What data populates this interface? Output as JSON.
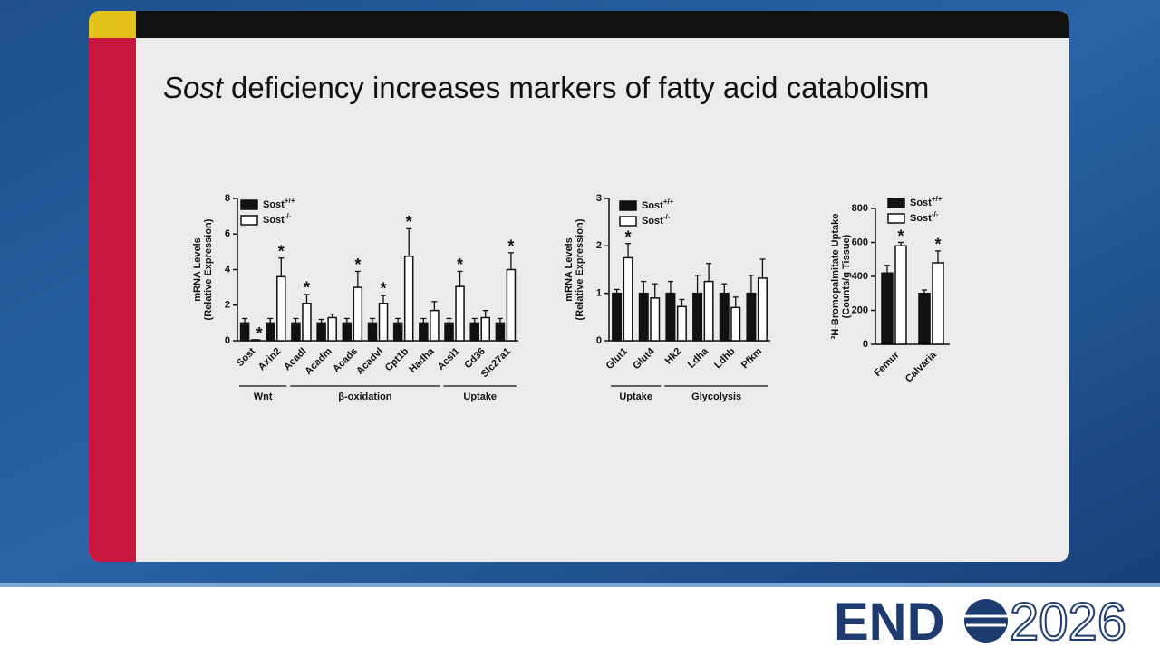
{
  "slide": {
    "title_italic": "Sost",
    "title_rest": "deficiency increases markers of fatty acid catabolism"
  },
  "logo": {
    "left": "END",
    "right": "2026"
  },
  "chart_data": [
    {
      "type": "bar",
      "y_label": [
        "mRNA Levels",
        "(Relative Expression)"
      ],
      "categories": [
        "Sost",
        "Axin2",
        "Acadl",
        "Acadm",
        "Acads",
        "Acadvl",
        "Cpt1b",
        "Hadha",
        "Acsl1",
        "Cd36",
        "Slc27a1"
      ],
      "series": [
        {
          "name": "Sost+/+",
          "color": "#111111",
          "values": [
            1,
            1,
            1,
            1,
            1,
            1,
            1,
            1,
            1,
            1,
            1
          ],
          "errors": [
            0.25,
            0.25,
            0.25,
            0.2,
            0.25,
            0.25,
            0.25,
            0.25,
            0.25,
            0.25,
            0.25
          ]
        },
        {
          "name": "Sost-/-",
          "color": "#ffffff",
          "values": [
            0.05,
            3.6,
            2.1,
            1.3,
            3.0,
            2.1,
            4.75,
            1.7,
            3.05,
            1.3,
            4.0
          ],
          "errors": [
            0,
            1.05,
            0.5,
            0.2,
            0.9,
            0.45,
            1.55,
            0.5,
            0.85,
            0.4,
            0.95
          ],
          "annotations": [
            "*",
            "*",
            "*",
            null,
            "*",
            "*",
            "*",
            null,
            "*",
            null,
            "*"
          ]
        }
      ],
      "groups": [
        {
          "label": "Wnt",
          "start": 0,
          "end": 1
        },
        {
          "label": "β-oxidation",
          "start": 2,
          "end": 7
        },
        {
          "label": "Uptake",
          "start": 8,
          "end": 10
        }
      ],
      "ylim": [
        0,
        8
      ],
      "yticks": [
        0,
        2,
        4,
        6,
        8
      ]
    },
    {
      "type": "bar",
      "y_label": [
        "mRNA Levels",
        "(Relative Expression)"
      ],
      "categories": [
        "Glut1",
        "Glut4",
        "Hk2",
        "Ldha",
        "Ldhb",
        "Pfkm"
      ],
      "series": [
        {
          "name": "Sost+/+",
          "color": "#111111",
          "values": [
            1,
            1,
            1,
            1,
            1,
            1
          ],
          "errors": [
            0.08,
            0.25,
            0.25,
            0.38,
            0.2,
            0.38
          ]
        },
        {
          "name": "Sost-/-",
          "color": "#ffffff",
          "values": [
            1.75,
            0.9,
            0.72,
            1.25,
            0.7,
            1.32
          ],
          "errors": [
            0.3,
            0.3,
            0.15,
            0.38,
            0.22,
            0.4
          ],
          "annotations": [
            "*",
            null,
            null,
            null,
            null,
            null
          ]
        }
      ],
      "groups": [
        {
          "label": "Uptake",
          "start": 0,
          "end": 1
        },
        {
          "label": "Glycolysis",
          "start": 2,
          "end": 5
        }
      ],
      "ylim": [
        0,
        3
      ],
      "yticks": [
        0,
        1,
        2,
        3
      ]
    },
    {
      "type": "bar",
      "y_label": [
        "³H-Bromopalmitate Uptake",
        "(Counts/g Tissue)"
      ],
      "categories": [
        "Femur",
        "Calvaria"
      ],
      "series": [
        {
          "name": "Sost+/+",
          "color": "#111111",
          "values": [
            420,
            300
          ],
          "errors": [
            45,
            20
          ]
        },
        {
          "name": "Sost-/-",
          "color": "#ffffff",
          "values": [
            580,
            480
          ],
          "errors": [
            20,
            70
          ],
          "annotations": [
            "*",
            "*"
          ]
        }
      ],
      "ylim": [
        0,
        800
      ],
      "yticks": [
        0,
        200,
        400,
        600,
        800
      ]
    }
  ]
}
